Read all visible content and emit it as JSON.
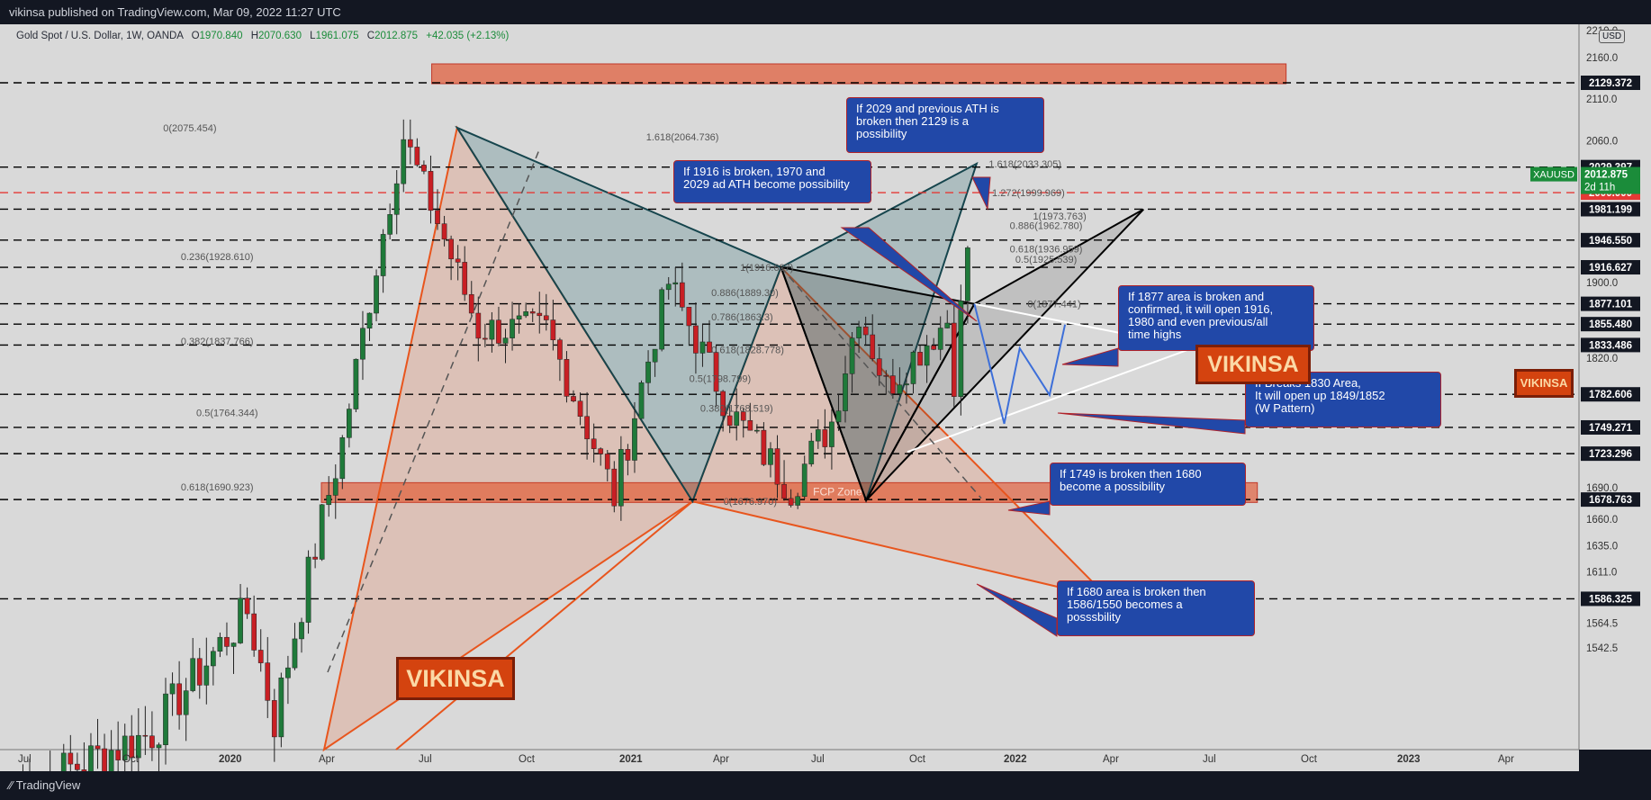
{
  "header": {
    "published": "vikinsa published on TradingView.com, Mar 09, 2022 11:27 UTC"
  },
  "footer": {
    "brand": "TradingView"
  },
  "legend": {
    "symbol": "Gold Spot / U.S. Dollar, 1W, OANDA",
    "o_label": "O",
    "o_value": "1970.840",
    "h_label": "H",
    "h_value": "2070.630",
    "l_label": "L",
    "l_value": "1961.075",
    "c_label": "C",
    "c_value": "2012.875",
    "change": "+42.035 (+2.13%)",
    "currency": "USD"
  },
  "colors": {
    "background": "#d9d9d9",
    "up_candle": "#1f7a3a",
    "down_candle": "#c81f24",
    "pattern_orange": "#e8551d",
    "note_blue": "#2148a8",
    "level_line": "#000000",
    "ath_line": "#e53935"
  },
  "notes": [
    "If 2029 and previous ATH is\nbroken then 2129 is a\npossibility",
    "If 1916 is broken, 1970 and\n2029 ad ATH become possibility",
    "If 1877 area is broken and\nconfirmed, it will open 1916,\n1980 and even previous/all\ntime highs",
    "If Breaks 1830 Area,\nIt will open up 1849/1852\n(W Pattern)",
    "If 1749 is broken then 1680\nbecome a possibility",
    "If 1680 area is broken then\n1586/1550 becomes a\nposssbility"
  ],
  "stamps": [
    "VIKINSA",
    "VIKINSA",
    "VIKINSA"
  ],
  "zone_label": "FCP Zone",
  "chart_data": {
    "type": "candlestick",
    "symbol": "XAUUSD",
    "timeframe": "1W",
    "x_ticks": [
      "Jul",
      "Oct",
      "2020",
      "Apr",
      "Jul",
      "Oct",
      "2021",
      "Apr",
      "Jul",
      "Oct",
      "2022",
      "Apr",
      "Jul",
      "Oct",
      "2023",
      "Apr"
    ],
    "y_ticks": [
      2160.0,
      2110.0,
      2060.0,
      1900.0,
      1820.0,
      1690.0,
      1660.0,
      1635.0,
      1611.0,
      1564.5,
      1542.5
    ],
    "y_top_label": "2210.0",
    "ylim": [
      1530,
      2215
    ],
    "levels": [
      2129.372,
      2029.397,
      1981.199,
      1946.55,
      1916.627,
      1877.101,
      1855.48,
      1833.486,
      1782.606,
      1749.271,
      1723.296,
      1678.763,
      1586.325
    ],
    "ath_line": 2000.0,
    "current": {
      "label": "XAUUSD",
      "price": "2012.875",
      "countdown": "2d 11h"
    },
    "fib_labels": [
      {
        "text": "0(2075.454)",
        "price": 2075.454,
        "date": "2019-11-15"
      },
      {
        "text": "0.236(1928.610)",
        "price": 1928.61,
        "date": "2019-12-01"
      },
      {
        "text": "0.382(1837.766)",
        "price": 1837.766,
        "date": "2019-12-01"
      },
      {
        "text": "0.5(1764.344)",
        "price": 1764.344,
        "date": "2019-12-15"
      },
      {
        "text": "0.618(1690.923)",
        "price": 1690.923,
        "date": "2019-12-01"
      },
      {
        "text": "1.618(2064.736)",
        "price": 2064.736,
        "date": "2021-01-25"
      },
      {
        "text": "1(1916.627)",
        "price": 1916.627,
        "date": "2021-04-20"
      },
      {
        "text": "0.886(1889.30)",
        "price": 1889.3,
        "date": "2021-03-25"
      },
      {
        "text": "0.786(1863.3)",
        "price": 1863.3,
        "date": "2021-03-25"
      },
      {
        "text": "0.618(1828.778)",
        "price": 1828.778,
        "date": "2021-03-25"
      },
      {
        "text": "0.5(1798.799)",
        "price": 1798.799,
        "date": "2021-03-05"
      },
      {
        "text": "0.382(1768.519)",
        "price": 1768.519,
        "date": "2021-03-15"
      },
      {
        "text": "0(1676.970)",
        "price": 1676.97,
        "date": "2021-04-05"
      },
      {
        "text": "1.618(2033.305)",
        "price": 2033.305,
        "date": "2021-12-01"
      },
      {
        "text": "1.272(1999.969)",
        "price": 1999.969,
        "date": "2021-12-04"
      },
      {
        "text": "1(1973.763)",
        "price": 1973.763,
        "date": "2022-01-10"
      },
      {
        "text": "0.886(1962.780)",
        "price": 1962.78,
        "date": "2021-12-20"
      },
      {
        "text": "0.618(1936.959)",
        "price": 1936.959,
        "date": "2021-12-20"
      },
      {
        "text": "0.5(1925.539)",
        "price": 1925.539,
        "date": "2021-12-25"
      },
      {
        "text": "0(1877.441)",
        "price": 1877.441,
        "date": "2022-01-05"
      }
    ]
  }
}
